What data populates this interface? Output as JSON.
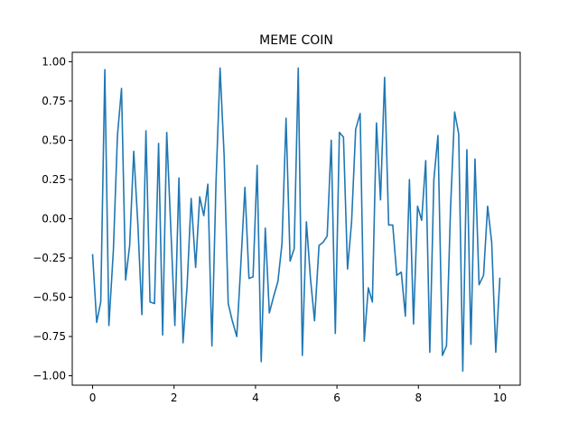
{
  "chart_data": {
    "type": "line",
    "title": "MEME COIN",
    "xlabel": "",
    "ylabel": "",
    "xlim": [
      -0.5,
      10.5
    ],
    "ylim": [
      -1.06,
      1.06
    ],
    "xticks": [
      0,
      2,
      4,
      6,
      8,
      10
    ],
    "xtick_labels": [
      "0",
      "2",
      "4",
      "6",
      "8",
      "10"
    ],
    "yticks": [
      -1.0,
      -0.75,
      -0.5,
      -0.25,
      0.0,
      0.25,
      0.5,
      0.75,
      1.0
    ],
    "ytick_labels": [
      "−1.00",
      "−0.75",
      "−0.50",
      "−0.25",
      "0.00",
      "0.25",
      "0.50",
      "0.75",
      "1.00"
    ],
    "grid": false,
    "legend": false,
    "series_color": "#1f77b4",
    "x": [
      0.0,
      0.1,
      0.2,
      0.3,
      0.4,
      0.51,
      0.61,
      0.71,
      0.81,
      0.91,
      1.01,
      1.11,
      1.21,
      1.31,
      1.41,
      1.52,
      1.62,
      1.72,
      1.82,
      1.92,
      2.02,
      2.12,
      2.22,
      2.32,
      2.42,
      2.53,
      2.63,
      2.73,
      2.83,
      2.93,
      3.03,
      3.13,
      3.23,
      3.33,
      3.43,
      3.54,
      3.64,
      3.74,
      3.84,
      3.94,
      4.04,
      4.14,
      4.24,
      4.34,
      4.44,
      4.55,
      4.65,
      4.75,
      4.85,
      4.95,
      5.05,
      5.15,
      5.25,
      5.35,
      5.45,
      5.56,
      5.66,
      5.76,
      5.86,
      5.96,
      6.06,
      6.16,
      6.26,
      6.36,
      6.46,
      6.57,
      6.67,
      6.77,
      6.87,
      6.97,
      7.07,
      7.17,
      7.27,
      7.37,
      7.47,
      7.58,
      7.68,
      7.78,
      7.88,
      7.98,
      8.08,
      8.18,
      8.28,
      8.38,
      8.48,
      8.59,
      8.69,
      8.79,
      8.89,
      8.99,
      9.09,
      9.19,
      9.29,
      9.39,
      9.49,
      9.6,
      9.7,
      9.8,
      9.9,
      10.0
    ],
    "values": [
      -0.23,
      -0.66,
      -0.53,
      0.95,
      -0.68,
      -0.2,
      0.53,
      0.83,
      -0.39,
      -0.17,
      0.43,
      -0.03,
      -0.61,
      0.56,
      -0.53,
      -0.54,
      0.48,
      -0.74,
      0.55,
      -0.06,
      -0.68,
      0.26,
      -0.79,
      -0.43,
      0.13,
      -0.31,
      0.14,
      0.02,
      0.22,
      -0.81,
      0.23,
      0.96,
      0.4,
      -0.54,
      -0.65,
      -0.75,
      -0.29,
      0.2,
      -0.38,
      -0.37,
      0.34,
      -0.91,
      -0.06,
      -0.6,
      -0.5,
      -0.4,
      -0.16,
      0.64,
      -0.27,
      -0.19,
      0.96,
      -0.87,
      -0.02,
      -0.38,
      -0.65,
      -0.17,
      -0.15,
      -0.11,
      0.5,
      -0.73,
      0.55,
      0.52,
      -0.32,
      -0.02,
      0.57,
      0.67,
      -0.78,
      -0.44,
      -0.53,
      0.61,
      0.12,
      0.9,
      -0.04,
      -0.04,
      -0.36,
      -0.34,
      -0.62,
      0.25,
      -0.67,
      0.08,
      -0.01,
      0.37,
      -0.85,
      0.25,
      0.53,
      -0.87,
      -0.81,
      0.07,
      0.68,
      0.54,
      -0.97,
      0.44,
      -0.8,
      0.38,
      -0.42,
      -0.36,
      0.08,
      -0.15,
      -0.85,
      -0.38
    ]
  }
}
